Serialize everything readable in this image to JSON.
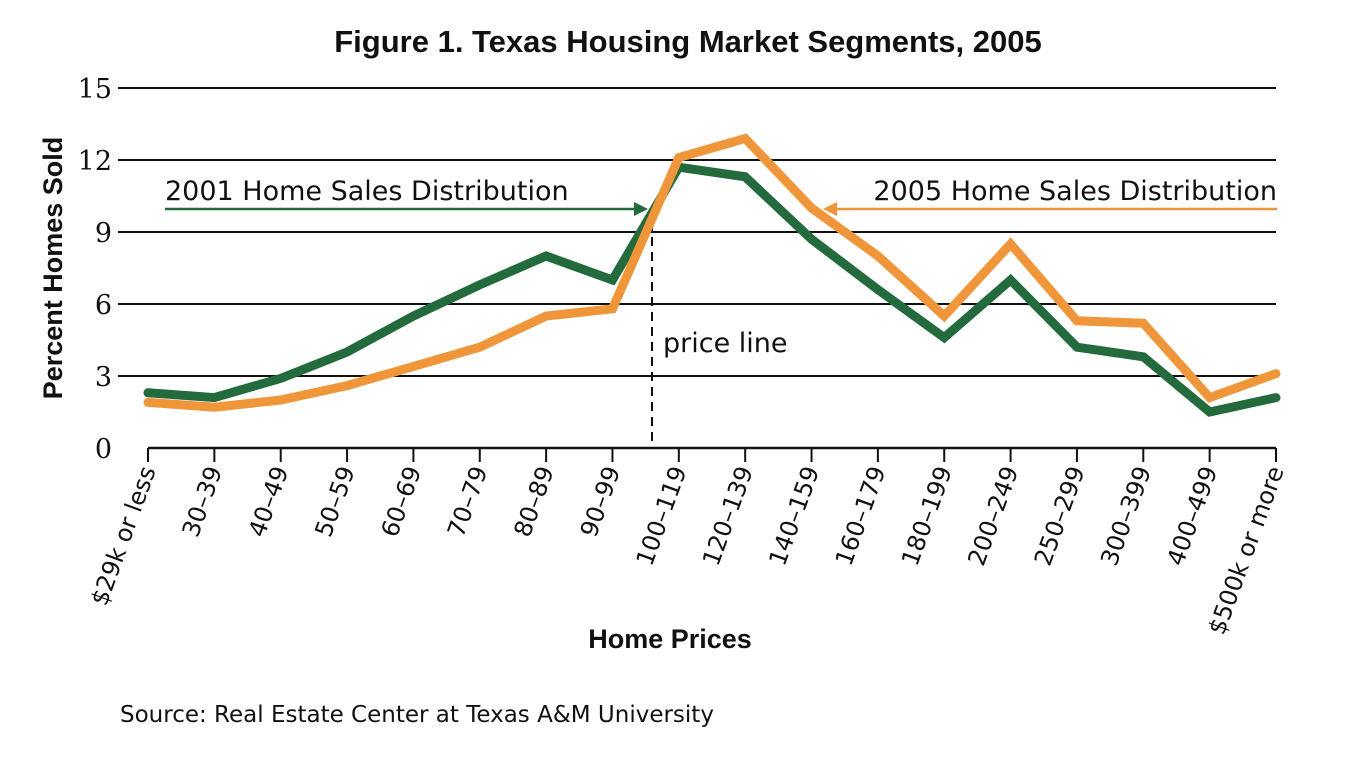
{
  "chart_data": {
    "type": "line",
    "title": "Figure 1. Texas Housing Market Segments, 2005",
    "xlabel": "Home Prices",
    "ylabel": "Percent Homes Sold",
    "ylim": [
      0,
      15
    ],
    "yticks": [
      0,
      3,
      6,
      9,
      12,
      15
    ],
    "grid": true,
    "categories": [
      "$29k or less",
      "30–39",
      "40–49",
      "50–59",
      "60–69",
      "70–79",
      "80–89",
      "90–99",
      "100–119",
      "120–139",
      "140–159",
      "160–179",
      "180–199",
      "200–249",
      "250–299",
      "300–399",
      "400–499",
      "$500k or more"
    ],
    "series": [
      {
        "name": "2001 Home Sales Distribution",
        "color": "#236a3c",
        "values": [
          2.3,
          2.1,
          2.9,
          4.0,
          5.5,
          6.8,
          8.0,
          7.0,
          11.7,
          11.3,
          8.7,
          6.6,
          4.6,
          7.0,
          4.2,
          3.8,
          1.5,
          2.1
        ]
      },
      {
        "name": "2005 Home Sales Distribution",
        "color": "#f0963a",
        "values": [
          1.9,
          1.7,
          2.0,
          2.6,
          3.4,
          4.2,
          5.5,
          5.8,
          12.1,
          12.9,
          10.0,
          8.0,
          5.5,
          8.5,
          5.3,
          5.2,
          2.1,
          3.1
        ]
      }
    ],
    "annotations": {
      "price_line": "price line"
    },
    "source": "Source: Real Estate Center at Texas A&M University"
  }
}
